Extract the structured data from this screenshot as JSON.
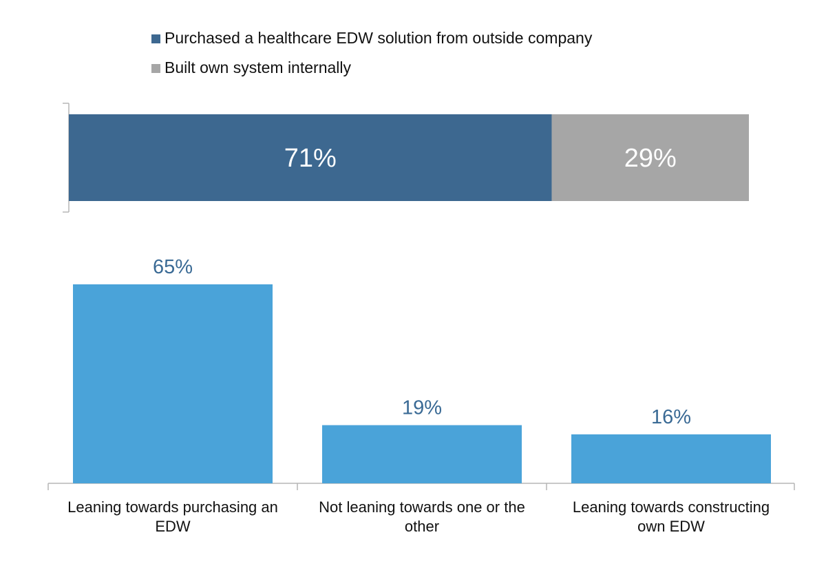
{
  "colors": {
    "purchased": "#3d6890",
    "built": "#a6a6a6",
    "bars": "#4aa3d9",
    "bar_label": "#3a6a95",
    "axis": "#b5b5b5",
    "text": "#111111",
    "stacked_label": "#ffffff"
  },
  "chart_data": [
    {
      "type": "bar",
      "stacked": true,
      "orientation": "horizontal",
      "legend_position": "top-left",
      "series": [
        {
          "name": "Purchased a healthcare EDW solution from outside company",
          "values": [
            71
          ],
          "label": "71%"
        },
        {
          "name": "Built own system internally",
          "values": [
            29
          ],
          "label": "29%"
        }
      ],
      "xlim": [
        0,
        100
      ]
    },
    {
      "type": "bar",
      "categories": [
        "Leaning towards purchasing an EDW",
        "Not leaning towards one or the other",
        "Leaning towards constructing own EDW"
      ],
      "category_lines": [
        [
          "Leaning towards purchasing an",
          "EDW"
        ],
        [
          "Not leaning towards one or the",
          "other"
        ],
        [
          "Leaning towards constructing",
          "own EDW"
        ]
      ],
      "values": [
        65,
        19,
        16
      ],
      "labels": [
        "65%",
        "19%",
        "16%"
      ],
      "ylim": [
        0,
        70
      ]
    }
  ]
}
